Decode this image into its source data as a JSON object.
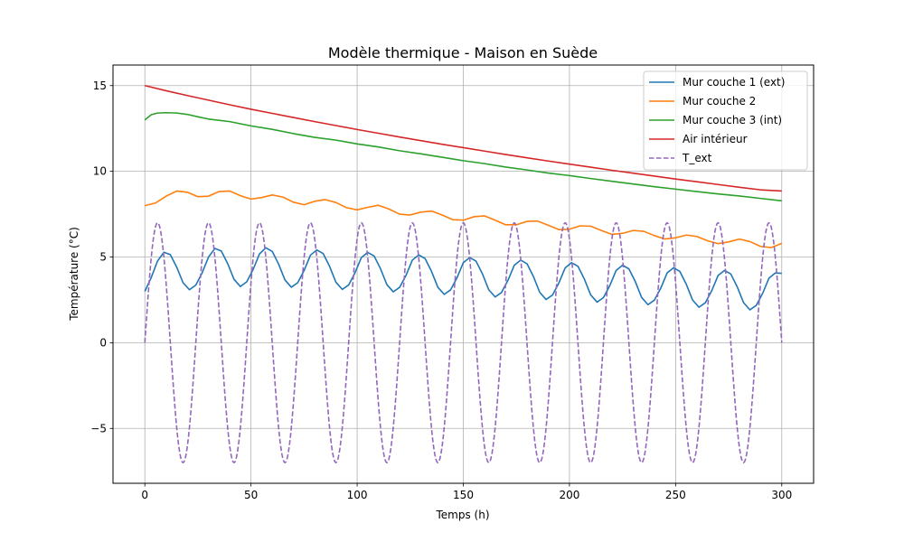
{
  "chart_data": {
    "type": "line",
    "title": "Modèle thermique - Maison en Suède",
    "xlabel": "Temps (h)",
    "ylabel": "Température (°C)",
    "xlim": [
      -15,
      315
    ],
    "ylim": [
      -8.2,
      16.2
    ],
    "xticks": [
      0,
      50,
      100,
      150,
      200,
      250,
      300
    ],
    "yticks": [
      -5,
      0,
      5,
      10,
      15
    ],
    "xtick_labels": [
      "0",
      "50",
      "100",
      "150",
      "200",
      "250",
      "300"
    ],
    "ytick_labels": [
      "−5",
      "0",
      "5",
      "10",
      "15"
    ],
    "grid": true,
    "legend_position": "top-right",
    "series": [
      {
        "name": "Mur couche 1 (ext)",
        "color": "#1f77b4",
        "dash": false,
        "x": [
          0,
          3,
          6,
          9,
          12,
          15,
          18,
          21,
          24,
          27,
          30,
          33,
          36,
          39,
          42,
          45,
          48,
          51,
          54,
          57,
          60,
          63,
          66,
          69,
          72,
          75,
          78,
          81,
          84,
          87,
          90,
          93,
          96,
          99,
          102,
          105,
          108,
          111,
          114,
          117,
          120,
          123,
          126,
          129,
          132,
          135,
          138,
          141,
          144,
          147,
          150,
          153,
          156,
          159,
          162,
          165,
          168,
          171,
          174,
          177,
          180,
          183,
          186,
          189,
          192,
          195,
          198,
          201,
          204,
          207,
          210,
          213,
          216,
          219,
          222,
          225,
          228,
          231,
          234,
          237,
          240,
          243,
          246,
          249,
          252,
          255,
          258,
          261,
          264,
          267,
          270,
          273,
          276,
          279,
          282,
          285,
          288,
          291,
          294,
          297,
          300
        ],
        "y": [
          3.0,
          3.8,
          4.77,
          5.28,
          5.14,
          4.41,
          3.5,
          3.09,
          3.36,
          4.08,
          5.0,
          5.5,
          5.35,
          4.62,
          3.7,
          3.28,
          3.55,
          4.27,
          5.18,
          5.54,
          5.33,
          4.59,
          3.66,
          3.24,
          3.5,
          4.21,
          5.11,
          5.41,
          5.2,
          4.46,
          3.53,
          3.11,
          3.37,
          4.08,
          4.97,
          5.27,
          5.06,
          4.32,
          3.39,
          2.97,
          3.23,
          3.93,
          4.82,
          5.12,
          4.91,
          4.17,
          3.24,
          2.82,
          3.08,
          3.78,
          4.67,
          4.97,
          4.76,
          4.02,
          3.09,
          2.67,
          2.93,
          3.63,
          4.52,
          4.82,
          4.61,
          3.87,
          2.94,
          2.52,
          2.78,
          3.48,
          4.37,
          4.67,
          4.46,
          3.72,
          2.79,
          2.37,
          2.63,
          3.33,
          4.22,
          4.52,
          4.31,
          3.57,
          2.64,
          2.22,
          2.48,
          3.18,
          4.07,
          4.37,
          4.16,
          3.42,
          2.49,
          2.07,
          2.33,
          3.03,
          3.92,
          4.22,
          4.01,
          3.27,
          2.34,
          1.92,
          2.18,
          2.88,
          3.77,
          4.07,
          4.05
        ]
      },
      {
        "name": "Mur couche 2",
        "color": "#ff7f0e",
        "dash": false,
        "x": [
          0,
          5,
          10,
          15,
          20,
          25,
          30,
          35,
          40,
          45,
          50,
          55,
          60,
          65,
          70,
          75,
          80,
          85,
          90,
          95,
          100,
          105,
          110,
          115,
          120,
          125,
          130,
          135,
          140,
          145,
          150,
          155,
          160,
          165,
          170,
          175,
          180,
          185,
          190,
          195,
          200,
          205,
          210,
          215,
          220,
          225,
          230,
          235,
          240,
          245,
          250,
          255,
          260,
          265,
          270,
          275,
          280,
          285,
          290,
          295,
          300
        ],
        "y": [
          8.0,
          8.15,
          8.55,
          8.85,
          8.78,
          8.52,
          8.55,
          8.82,
          8.85,
          8.58,
          8.38,
          8.47,
          8.62,
          8.5,
          8.2,
          8.05,
          8.25,
          8.35,
          8.18,
          7.88,
          7.75,
          7.9,
          8.02,
          7.8,
          7.5,
          7.45,
          7.62,
          7.68,
          7.45,
          7.18,
          7.15,
          7.35,
          7.4,
          7.15,
          6.88,
          6.88,
          7.08,
          7.1,
          6.85,
          6.6,
          6.62,
          6.82,
          6.8,
          6.55,
          6.32,
          6.38,
          6.55,
          6.5,
          6.25,
          6.05,
          6.12,
          6.28,
          6.2,
          5.95,
          5.78,
          5.88,
          6.05,
          5.9,
          5.62,
          5.55,
          5.8
        ]
      },
      {
        "name": "Mur couche 3 (int)",
        "color": "#2ca02c",
        "dash": false,
        "x": [
          0,
          3,
          6,
          10,
          15,
          20,
          25,
          30,
          40,
          50,
          60,
          70,
          80,
          90,
          100,
          110,
          120,
          130,
          140,
          150,
          160,
          170,
          180,
          190,
          200,
          210,
          220,
          230,
          240,
          250,
          260,
          270,
          280,
          290,
          300
        ],
        "y": [
          13.0,
          13.3,
          13.4,
          13.42,
          13.4,
          13.32,
          13.18,
          13.05,
          12.9,
          12.65,
          12.45,
          12.2,
          11.98,
          11.82,
          11.6,
          11.42,
          11.2,
          11.02,
          10.82,
          10.62,
          10.45,
          10.25,
          10.08,
          9.9,
          9.75,
          9.58,
          9.42,
          9.26,
          9.1,
          8.96,
          8.82,
          8.68,
          8.56,
          8.42,
          8.28
        ]
      },
      {
        "name": "Air intérieur",
        "color": "#d62728",
        "dash": false,
        "x": [
          0,
          10,
          20,
          30,
          40,
          50,
          60,
          70,
          80,
          90,
          100,
          110,
          120,
          130,
          140,
          150,
          160,
          170,
          180,
          190,
          200,
          210,
          220,
          230,
          240,
          250,
          260,
          270,
          280,
          290,
          300
        ],
        "y": [
          15.0,
          14.7,
          14.42,
          14.15,
          13.88,
          13.62,
          13.38,
          13.14,
          12.9,
          12.67,
          12.44,
          12.22,
          12.0,
          11.79,
          11.58,
          11.38,
          11.18,
          10.98,
          10.79,
          10.6,
          10.42,
          10.24,
          10.06,
          9.89,
          9.72,
          9.55,
          9.39,
          9.23,
          9.07,
          8.92,
          8.85
        ]
      },
      {
        "name": "T_ext",
        "color": "#9467bd",
        "dash": true,
        "amplitude": 7,
        "period_h": 24,
        "x_range": [
          0,
          300
        ]
      }
    ]
  }
}
